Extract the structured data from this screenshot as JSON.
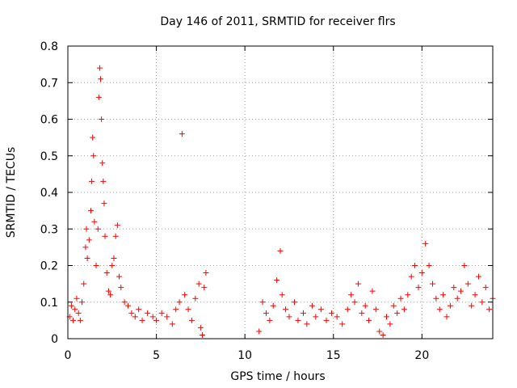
{
  "chart_data": {
    "type": "scatter",
    "title": "Day 146 of 2011, SRMTID for receiver flrs",
    "xlabel": "GPS time / hours",
    "ylabel": "SRMTID / TECUs",
    "xlim": [
      0,
      24
    ],
    "ylim": [
      0,
      0.8
    ],
    "xticks": [
      0,
      5,
      10,
      15,
      20
    ],
    "xtick_labels": [
      "0",
      "5",
      "10",
      "15",
      "20"
    ],
    "yticks": [
      0,
      0.1,
      0.2,
      0.3,
      0.4,
      0.5,
      0.6,
      0.7,
      0.8
    ],
    "ytick_labels": [
      "0",
      "0.1",
      "0.2",
      "0.3",
      "0.4",
      "0.5",
      "0.6",
      "0.7",
      "0.8"
    ],
    "grid": true,
    "marker": "+",
    "color": "#ff0000",
    "series": [
      {
        "name": "flrs",
        "points": [
          [
            0.1,
            0.06
          ],
          [
            0.2,
            0.09
          ],
          [
            0.3,
            0.05
          ],
          [
            0.4,
            0.08
          ],
          [
            0.5,
            0.11
          ],
          [
            0.6,
            0.07
          ],
          [
            0.7,
            0.05
          ],
          [
            0.8,
            0.1
          ],
          [
            0.9,
            0.15
          ],
          [
            1.0,
            0.25
          ],
          [
            1.05,
            0.3
          ],
          [
            1.1,
            0.22
          ],
          [
            1.2,
            0.27
          ],
          [
            1.3,
            0.35
          ],
          [
            1.35,
            0.43
          ],
          [
            1.4,
            0.55
          ],
          [
            1.45,
            0.5
          ],
          [
            1.5,
            0.32
          ],
          [
            1.6,
            0.2
          ],
          [
            1.7,
            0.3
          ],
          [
            1.75,
            0.66
          ],
          [
            1.8,
            0.74
          ],
          [
            1.85,
            0.71
          ],
          [
            1.9,
            0.6
          ],
          [
            1.95,
            0.48
          ],
          [
            2.0,
            0.43
          ],
          [
            2.05,
            0.37
          ],
          [
            2.1,
            0.28
          ],
          [
            2.2,
            0.18
          ],
          [
            2.3,
            0.13
          ],
          [
            2.4,
            0.12
          ],
          [
            2.5,
            0.2
          ],
          [
            2.6,
            0.22
          ],
          [
            2.7,
            0.28
          ],
          [
            2.8,
            0.31
          ],
          [
            2.9,
            0.17
          ],
          [
            3.0,
            0.14
          ],
          [
            3.2,
            0.1
          ],
          [
            3.4,
            0.09
          ],
          [
            3.6,
            0.07
          ],
          [
            3.8,
            0.06
          ],
          [
            4.0,
            0.08
          ],
          [
            4.2,
            0.05
          ],
          [
            4.5,
            0.07
          ],
          [
            4.8,
            0.06
          ],
          [
            5.0,
            0.05
          ],
          [
            5.3,
            0.07
          ],
          [
            5.6,
            0.06
          ],
          [
            5.9,
            0.04
          ],
          [
            6.1,
            0.08
          ],
          [
            6.3,
            0.1
          ],
          [
            6.45,
            0.56
          ],
          [
            6.6,
            0.12
          ],
          [
            6.8,
            0.08
          ],
          [
            7.0,
            0.05
          ],
          [
            7.2,
            0.11
          ],
          [
            7.4,
            0.15
          ],
          [
            7.5,
            0.03
          ],
          [
            7.6,
            0.01
          ],
          [
            7.7,
            0.14
          ],
          [
            7.8,
            0.18
          ],
          [
            10.8,
            0.02
          ],
          [
            11.0,
            0.1
          ],
          [
            11.2,
            0.07
          ],
          [
            11.4,
            0.05
          ],
          [
            11.6,
            0.09
          ],
          [
            11.8,
            0.16
          ],
          [
            12.0,
            0.24
          ],
          [
            12.1,
            0.12
          ],
          [
            12.3,
            0.08
          ],
          [
            12.5,
            0.06
          ],
          [
            12.8,
            0.1
          ],
          [
            13.0,
            0.05
          ],
          [
            13.3,
            0.07
          ],
          [
            13.5,
            0.04
          ],
          [
            13.8,
            0.09
          ],
          [
            14.0,
            0.06
          ],
          [
            14.3,
            0.08
          ],
          [
            14.6,
            0.05
          ],
          [
            14.9,
            0.07
          ],
          [
            15.2,
            0.06
          ],
          [
            15.5,
            0.04
          ],
          [
            15.8,
            0.08
          ],
          [
            16.0,
            0.12
          ],
          [
            16.2,
            0.1
          ],
          [
            16.4,
            0.15
          ],
          [
            16.6,
            0.07
          ],
          [
            16.8,
            0.09
          ],
          [
            17.0,
            0.05
          ],
          [
            17.2,
            0.13
          ],
          [
            17.4,
            0.08
          ],
          [
            17.6,
            0.02
          ],
          [
            17.8,
            0.01
          ],
          [
            18.0,
            0.06
          ],
          [
            18.2,
            0.04
          ],
          [
            18.4,
            0.09
          ],
          [
            18.6,
            0.07
          ],
          [
            18.8,
            0.11
          ],
          [
            19.0,
            0.08
          ],
          [
            19.2,
            0.12
          ],
          [
            19.4,
            0.17
          ],
          [
            19.6,
            0.2
          ],
          [
            19.8,
            0.14
          ],
          [
            20.0,
            0.18
          ],
          [
            20.2,
            0.26
          ],
          [
            20.4,
            0.2
          ],
          [
            20.6,
            0.15
          ],
          [
            20.8,
            0.11
          ],
          [
            21.0,
            0.08
          ],
          [
            21.2,
            0.12
          ],
          [
            21.4,
            0.06
          ],
          [
            21.6,
            0.09
          ],
          [
            21.8,
            0.14
          ],
          [
            22.0,
            0.11
          ],
          [
            22.2,
            0.13
          ],
          [
            22.4,
            0.2
          ],
          [
            22.6,
            0.15
          ],
          [
            22.8,
            0.09
          ],
          [
            23.0,
            0.12
          ],
          [
            23.2,
            0.17
          ],
          [
            23.4,
            0.1
          ],
          [
            23.6,
            0.14
          ],
          [
            23.8,
            0.08
          ],
          [
            24.0,
            0.11
          ]
        ]
      }
    ]
  }
}
